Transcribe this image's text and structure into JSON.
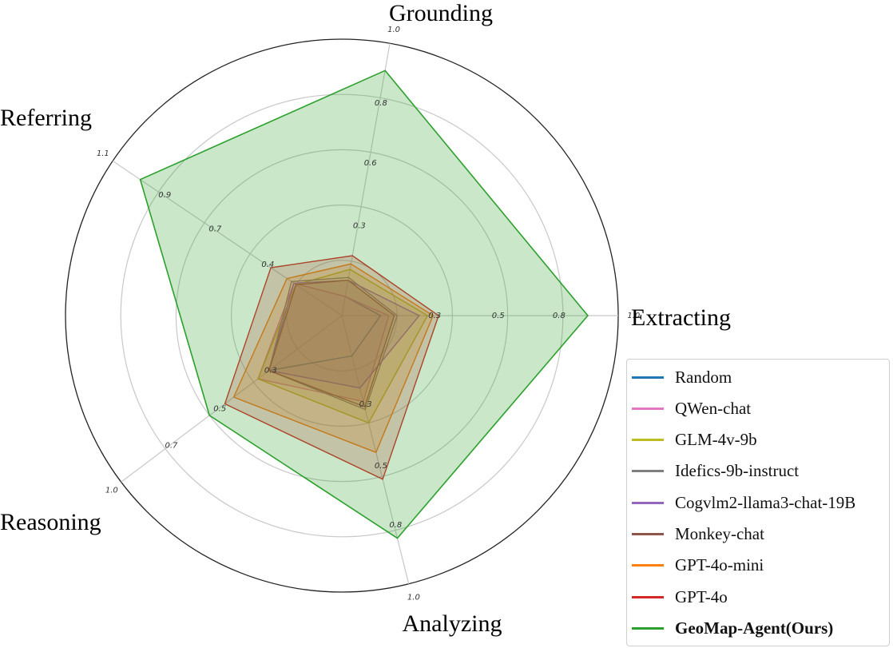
{
  "chart_data": {
    "type": "radar",
    "axes": [
      "Grounding",
      "Extracting",
      "Analyzing",
      "Reasoning",
      "Referring"
    ],
    "axis_ticks": {
      "Grounding": [
        "0.3",
        "0.6",
        "0.8",
        "1.0"
      ],
      "Extracting": [
        "0.3",
        "0.5",
        "0.8",
        "1.0"
      ],
      "Analyzing": [
        "0.3",
        "0.5",
        "0.8",
        "1.0"
      ],
      "Reasoning": [
        "0.3",
        "0.5",
        "0.7",
        "1.0"
      ],
      "Referring": [
        "0.4",
        "0.7",
        "0.9",
        "1.1"
      ]
    },
    "grid": true,
    "legend_position": "bottom-right",
    "series": [
      {
        "name": "Random",
        "color": "#1f77b4",
        "values": [
          0.07,
          0.14,
          0.15,
          0.33,
          0.21
        ],
        "fill": false
      },
      {
        "name": "QWen-chat",
        "color": "#e377c2",
        "values": [
          0.07,
          0.17,
          0.32,
          0.38,
          0.21
        ],
        "fill": true
      },
      {
        "name": "GLM-4v-9b",
        "color": "#bcbd22",
        "values": [
          0.17,
          0.31,
          0.4,
          0.38,
          0.2
        ],
        "fill": true
      },
      {
        "name": "Idefics-9b-instruct",
        "color": "#7f7f7f",
        "values": [
          0.14,
          0.2,
          0.35,
          0.33,
          0.22
        ],
        "fill": false
      },
      {
        "name": "Cogvlm2-llama3-chat-19B",
        "color": "#9467bd",
        "values": [
          0.13,
          0.28,
          0.27,
          0.33,
          0.21
        ],
        "fill": true
      },
      {
        "name": "Monkey-chat",
        "color": "#8c564b",
        "values": [
          0.13,
          0.19,
          0.34,
          0.33,
          0.2
        ],
        "fill": true
      },
      {
        "name": "GPT-4o-mini",
        "color": "#ff7f0e",
        "values": [
          0.19,
          0.33,
          0.51,
          0.49,
          0.24
        ],
        "fill": true
      },
      {
        "name": "GPT-4o",
        "color": "#d62728",
        "values": [
          0.22,
          0.35,
          0.61,
          0.53,
          0.31
        ],
        "fill": true
      },
      {
        "name": "GeoMap-Agent(Ours)",
        "color": "#2ca02c",
        "values": [
          0.9,
          0.89,
          0.83,
          0.6,
          0.88
        ],
        "fill": true,
        "bold": true
      }
    ]
  }
}
